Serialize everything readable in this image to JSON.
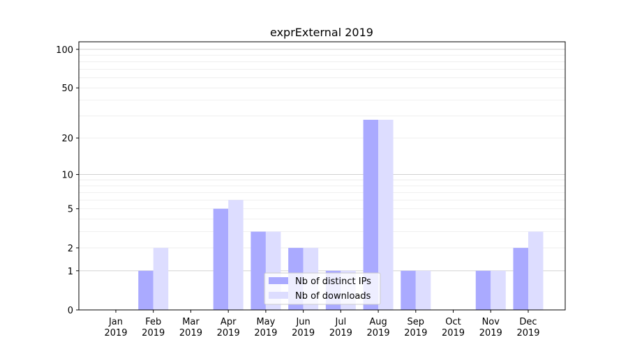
{
  "chart_data": {
    "type": "bar",
    "title": "exprExternal 2019",
    "xlabel": "",
    "ylabel": "",
    "yscale": "log(1+y)",
    "ylim": [
      0,
      110
    ],
    "yticks": [
      0,
      1,
      2,
      5,
      10,
      20,
      50,
      100
    ],
    "grid": true,
    "legend_placement": "lower-center",
    "categories": [
      "Jan\n2019",
      "Feb\n2019",
      "Mar\n2019",
      "Apr\n2019",
      "May\n2019",
      "Jun\n2019",
      "Jul\n2019",
      "Aug\n2019",
      "Sep\n2019",
      "Oct\n2019",
      "Nov\n2019",
      "Dec\n2019"
    ],
    "series": [
      {
        "name": "Nb of distinct IPs",
        "color": "#aaaaff",
        "values": [
          0,
          1,
          0,
          5,
          3,
          2,
          1,
          28,
          1,
          0,
          1,
          2
        ]
      },
      {
        "name": "Nb of downloads",
        "color": "#ddddff",
        "values": [
          0,
          2,
          0,
          6,
          3,
          2,
          1,
          28,
          1,
          0,
          1,
          3
        ]
      }
    ]
  }
}
